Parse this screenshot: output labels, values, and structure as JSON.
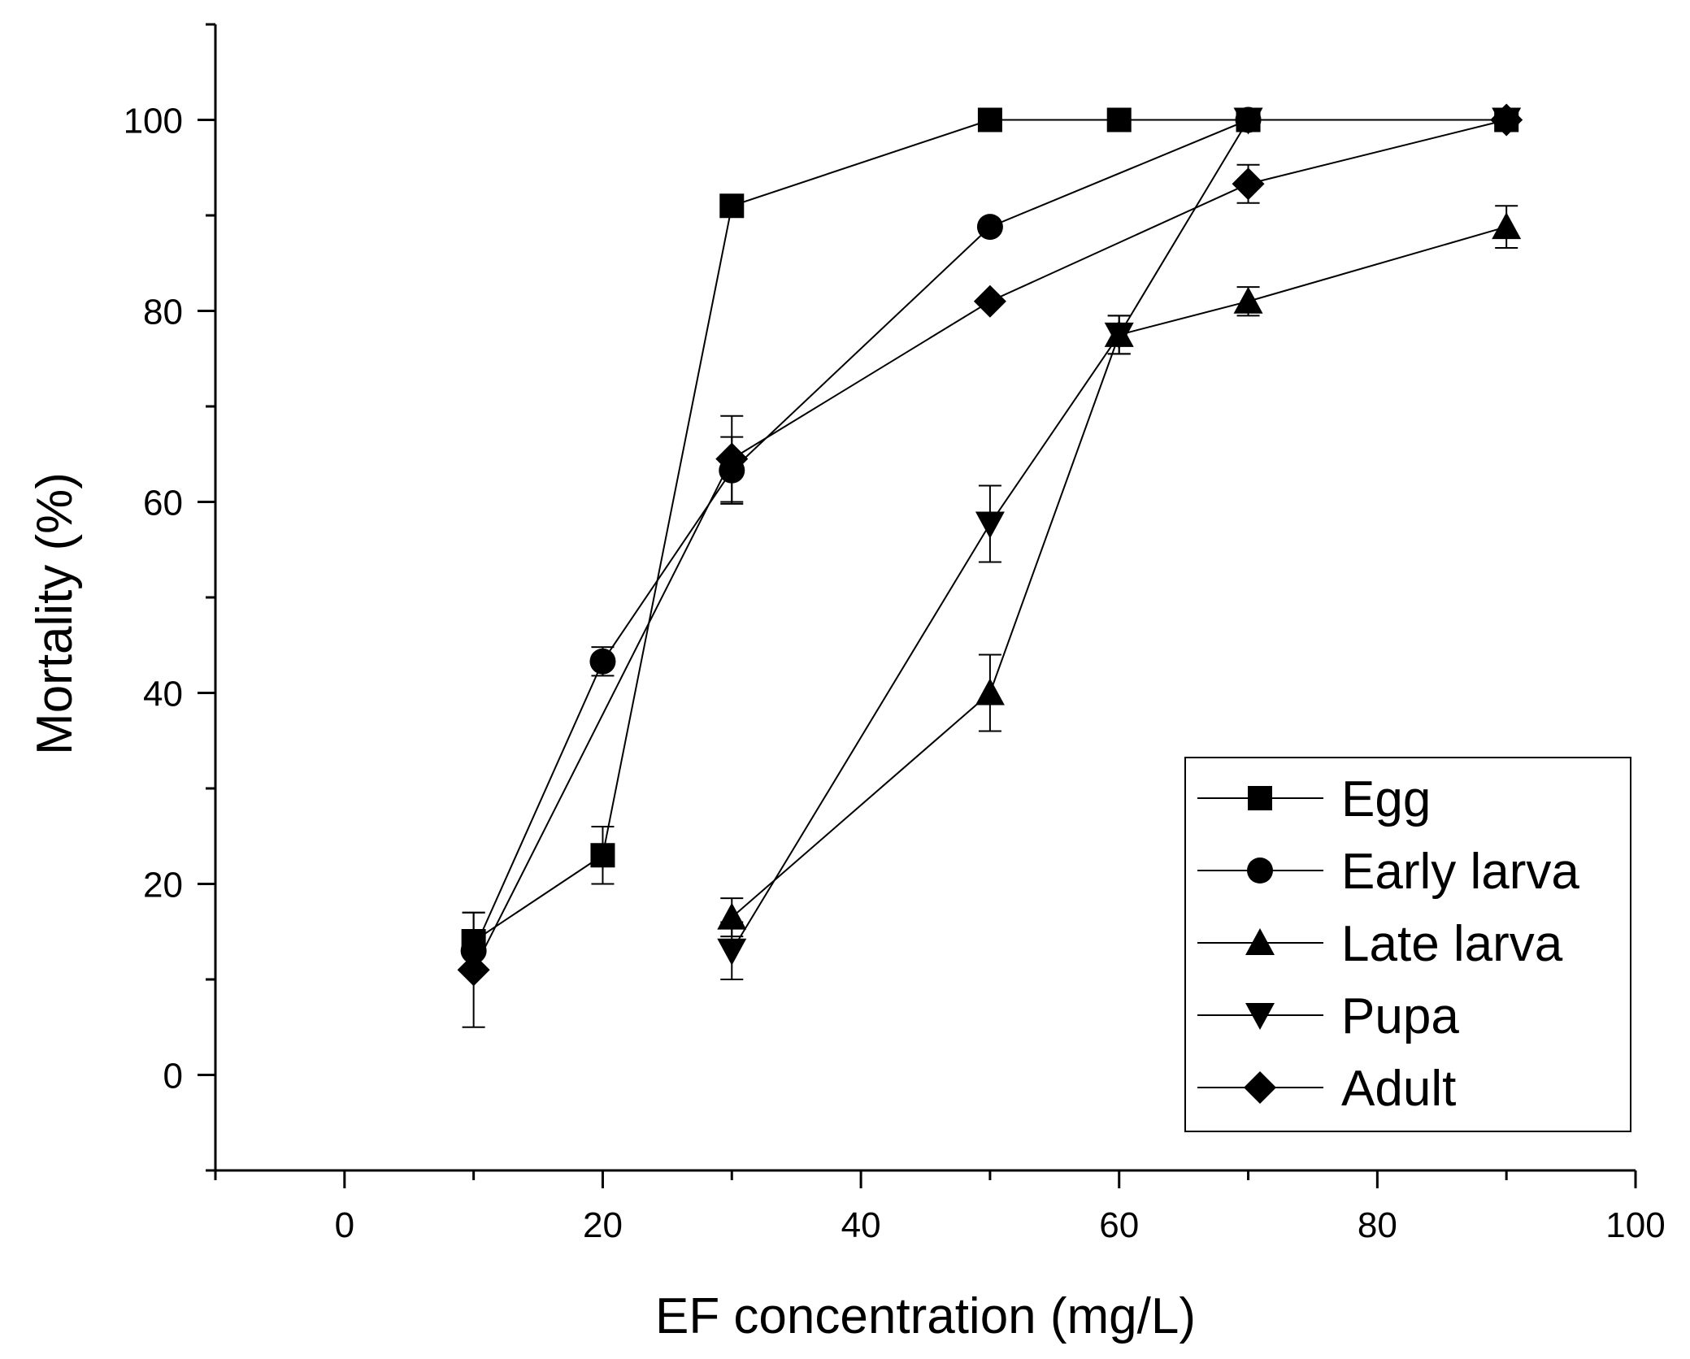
{
  "chart_data": {
    "type": "line",
    "title": "",
    "xlabel": "EF concentration (mg/L)",
    "ylabel": "Mortality (%)",
    "xlim": [
      -10,
      100
    ],
    "ylim": [
      -10,
      110
    ],
    "xticks": [
      0,
      20,
      40,
      60,
      80,
      100
    ],
    "yticks": [
      0,
      20,
      40,
      60,
      80,
      100
    ],
    "xtick_labels": [
      "0",
      "20",
      "40",
      "60",
      "80",
      "100"
    ],
    "ytick_labels": [
      "0",
      "20",
      "40",
      "60",
      "80",
      "100"
    ],
    "grid": false,
    "legend_position": "bottom-right",
    "series": [
      {
        "name": "Egg",
        "marker": "square",
        "x": [
          10,
          20,
          30,
          50,
          60,
          70,
          90
        ],
        "y": [
          14,
          23,
          91,
          100,
          100,
          100,
          100
        ],
        "err": [
          3,
          3,
          0,
          0,
          0,
          0,
          0
        ]
      },
      {
        "name": "Early larva",
        "marker": "circle",
        "x": [
          10,
          20,
          30,
          50,
          70,
          90
        ],
        "y": [
          13,
          43.3,
          63.3,
          88.8,
          100,
          100
        ],
        "err": [
          0,
          1.5,
          3.5,
          0,
          0,
          0
        ]
      },
      {
        "name": "Late larva",
        "marker": "triangle-up",
        "x": [
          30,
          50,
          60,
          70,
          90
        ],
        "y": [
          16.5,
          40,
          77.5,
          81,
          88.8
        ],
        "err": [
          2,
          4,
          2,
          1.5,
          2.2
        ]
      },
      {
        "name": "Pupa",
        "marker": "triangle-down",
        "x": [
          30,
          50,
          60,
          70,
          90
        ],
        "y": [
          13,
          57.7,
          77.5,
          100,
          100
        ],
        "err": [
          3,
          4,
          2,
          0,
          0
        ]
      },
      {
        "name": "Adult",
        "marker": "diamond",
        "x": [
          10,
          30,
          50,
          70,
          90
        ],
        "y": [
          11,
          64.5,
          81,
          93.3,
          100
        ],
        "err": [
          6,
          4.5,
          0,
          2,
          0
        ]
      }
    ]
  }
}
